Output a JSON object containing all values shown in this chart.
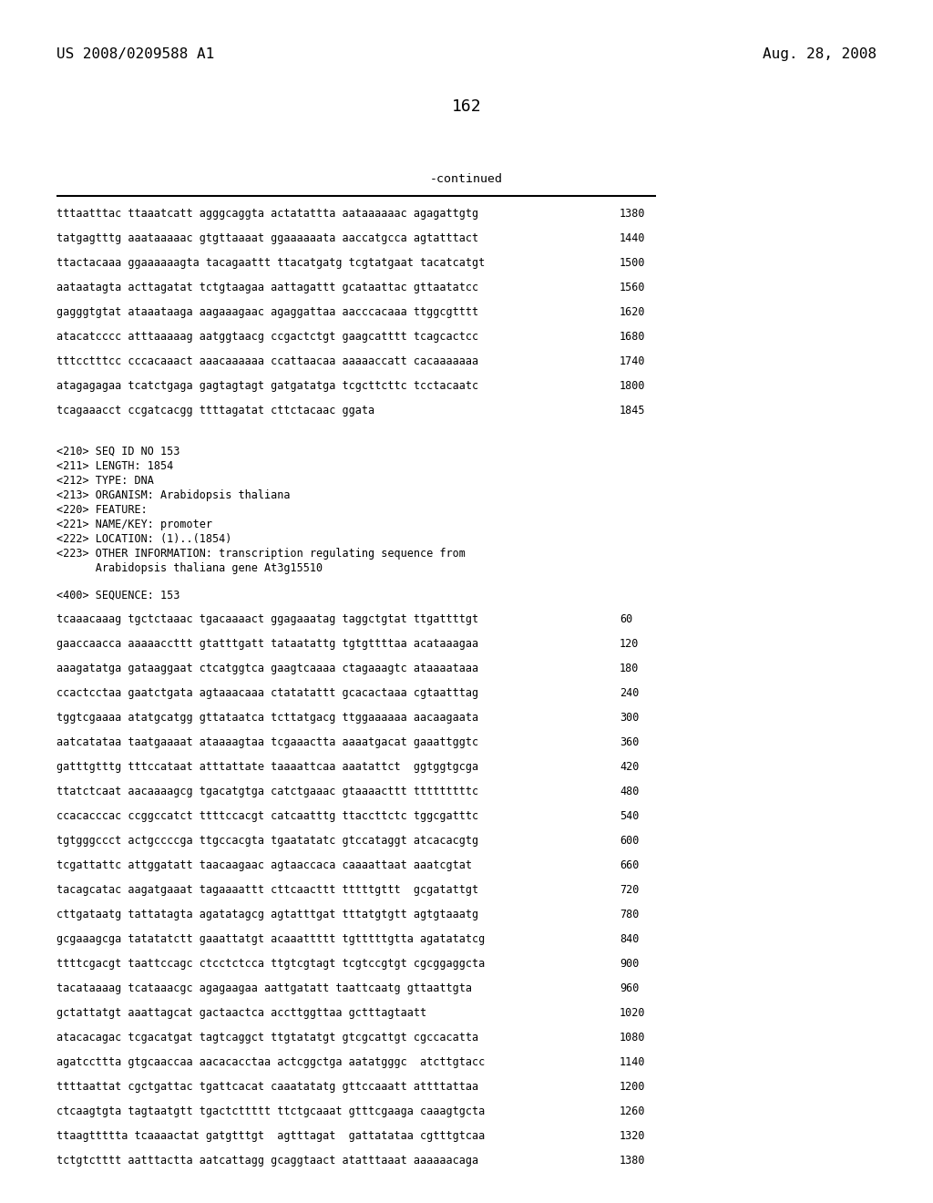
{
  "header_left": "US 2008/0209588 A1",
  "header_right": "Aug. 28, 2008",
  "page_number": "162",
  "continued_label": "-continued",
  "background_color": "#ffffff",
  "text_color": "#000000",
  "font_size_header": 11.5,
  "font_size_body": 8.5,
  "font_size_page": 13,
  "sequence_lines_top": [
    [
      "tttaatttac ttaaatcatt agggcaggta actatattta aataaaaaac agagattgtg",
      "1380"
    ],
    [
      "tatgagtttg aaataaaaac gtgttaaaat ggaaaaaata aaccatgcca agtatttact",
      "1440"
    ],
    [
      "ttactacaaa ggaaaaaagta tacagaattt ttacatgatg tcgtatgaat tacatcatgt",
      "1500"
    ],
    [
      "aataatagta acttagatat tctgtaagaa aattagattt gcataattac gttaatatcc",
      "1560"
    ],
    [
      "gagggtgtat ataaataaga aagaaagaac agaggattaa aacccacaaa ttggcgtttt",
      "1620"
    ],
    [
      "atacatcccc atttaaaaag aatggtaacg ccgactctgt gaagcatttt tcagcactcc",
      "1680"
    ],
    [
      "tttcctttcc cccacaaact aaacaaaaaa ccattaacaa aaaaaccatt cacaaaaaaa",
      "1740"
    ],
    [
      "atagagagaa tcatctgaga gagtagtagt gatgatatga tcgcttcttc tcctacaatc",
      "1800"
    ],
    [
      "tcagaaacct ccgatcacgg ttttagatat cttctacaac ggata",
      "1845"
    ]
  ],
  "metadata_lines": [
    "<210> SEQ ID NO 153",
    "<211> LENGTH: 1854",
    "<212> TYPE: DNA",
    "<213> ORGANISM: Arabidopsis thaliana",
    "<220> FEATURE:",
    "<221> NAME/KEY: promoter",
    "<222> LOCATION: (1)..(1854)",
    "<223> OTHER INFORMATION: transcription regulating sequence from",
    "      Arabidopsis thaliana gene At3g15510"
  ],
  "sequence400_label": "<400> SEQUENCE: 153",
  "sequence_lines_bottom": [
    [
      "tcaaacaaag tgctctaaac tgacaaaact ggagaaatag taggctgtat ttgattttgt",
      "60"
    ],
    [
      "gaaccaacca aaaaaccttt gtatttgatt tataatattg tgtgttttaa acataaagaa",
      "120"
    ],
    [
      "aaagatatga gataaggaat ctcatggtca gaagtcaaaa ctagaaagtc ataaaataaa",
      "180"
    ],
    [
      "ccactcctaa gaatctgata agtaaacaaa ctatatattt gcacactaaa cgtaatttag",
      "240"
    ],
    [
      "tggtcgaaaa atatgcatgg gttataatca tcttatgacg ttggaaaaaa aacaagaata",
      "300"
    ],
    [
      "aatcatataa taatgaaaat ataaaagtaa tcgaaactta aaaatgacat gaaattggtc",
      "360"
    ],
    [
      "gatttgtttg tttccataat atttattate taaaattcaa aaatattct  ggtggtgcga",
      "420"
    ],
    [
      "ttatctcaat aacaaaagcg tgacatgtga catctgaaac gtaaaacttt tttttttttc",
      "480"
    ],
    [
      "ccacacccac ccggccatct ttttccacgt catcaatttg ttaccttctc tggcgatttc",
      "540"
    ],
    [
      "tgtgggccct actgccccga ttgccacgta tgaatatatc gtccataggt atcacacgtg",
      "600"
    ],
    [
      "tcgattattc attggatatt taacaagaac agtaaccaca caaaattaat aaatcgtat",
      "660"
    ],
    [
      "tacagcatac aagatgaaat tagaaaattt cttcaacttt tttttgttt  gcgatattgt",
      "720"
    ],
    [
      "cttgataatg tattatagta agatatagcg agtatttgat tttatgtgtt agtgtaaatg",
      "780"
    ],
    [
      "gcgaaagcga tatatatctt gaaattatgt acaaattttt tgtttttgtta agatatatcg",
      "840"
    ],
    [
      "ttttcgacgt taattccagc ctcctctcca ttgtcgtagt tcgtccgtgt cgcggaggcta",
      "900"
    ],
    [
      "tacataaaag tcataaacgc agagaagaa aattgatatt taattcaatg gttaattgta",
      "960"
    ],
    [
      "gctattatgt aaattagcat gactaactca accttggttaa gctttagtaatt",
      "1020"
    ],
    [
      "atacacagac tcgacatgat tagtcaggct ttgtatatgt gtcgcattgt cgccacatta",
      "1080"
    ],
    [
      "agatccttta gtgcaaccaa aacacacctaa actcggctga aatatgggc  atcttgtacc",
      "1140"
    ],
    [
      "ttttaattat cgctgattac tgattcacat caaatatatg gttccaaatt attttattaa",
      "1200"
    ],
    [
      "ctcaagtgta tagtaatgtt tgactcttttt ttctgcaaat gtttcgaaga caaagtgcta",
      "1260"
    ],
    [
      "ttaagttttta tcaaaactat gatgtttgt  agtttagat  gattatataa cgtttgtcaa",
      "1320"
    ],
    [
      "tctgtctttt aatttactta aatcattagg gcaggtaact atatttaaat aaaaaacaga",
      "1380"
    ]
  ]
}
